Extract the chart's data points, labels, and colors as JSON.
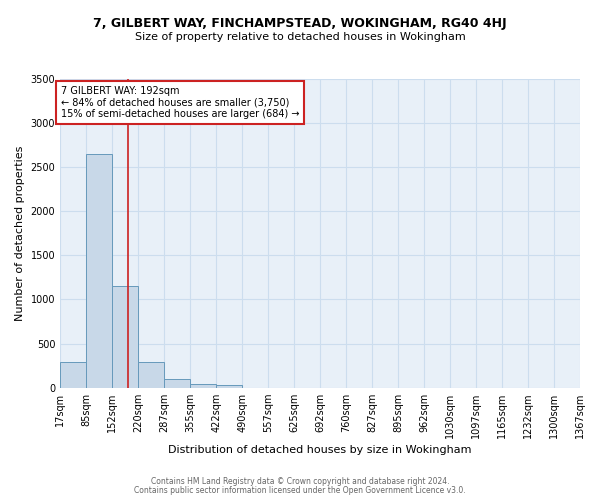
{
  "title1": "7, GILBERT WAY, FINCHAMPSTEAD, WOKINGHAM, RG40 4HJ",
  "title2": "Size of property relative to detached houses in Wokingham",
  "xlabel": "Distribution of detached houses by size in Wokingham",
  "ylabel": "Number of detached properties",
  "annotation_line1": "7 GILBERT WAY: 192sqm",
  "annotation_line2": "← 84% of detached houses are smaller (3,750)",
  "annotation_line3": "15% of semi-detached houses are larger (684) →",
  "property_size": 192,
  "bar_edges": [
    17,
    85,
    152,
    220,
    287,
    355,
    422,
    490,
    557,
    625,
    692,
    760,
    827,
    895,
    962,
    1030,
    1097,
    1165,
    1232,
    1300,
    1367
  ],
  "bar_heights": [
    295,
    2650,
    1150,
    290,
    95,
    40,
    30,
    0,
    0,
    0,
    0,
    0,
    0,
    0,
    0,
    0,
    0,
    0,
    0,
    0
  ],
  "bar_color": "#c8d8e8",
  "bar_edge_color": "#6699bb",
  "vline_color": "#cc2222",
  "vline_x": 192,
  "grid_color": "#ccddee",
  "bg_color": "#e8f0f8",
  "annotation_box_edge": "#cc2222",
  "footer1": "Contains HM Land Registry data © Crown copyright and database right 2024.",
  "footer2": "Contains public sector information licensed under the Open Government Licence v3.0.",
  "ylim": [
    0,
    3500
  ],
  "yticks": [
    0,
    500,
    1000,
    1500,
    2000,
    2500,
    3000,
    3500
  ],
  "title1_fontsize": 9,
  "title2_fontsize": 8,
  "xlabel_fontsize": 8,
  "ylabel_fontsize": 8,
  "tick_fontsize": 7,
  "footer_fontsize": 5.5,
  "ann_fontsize": 7
}
